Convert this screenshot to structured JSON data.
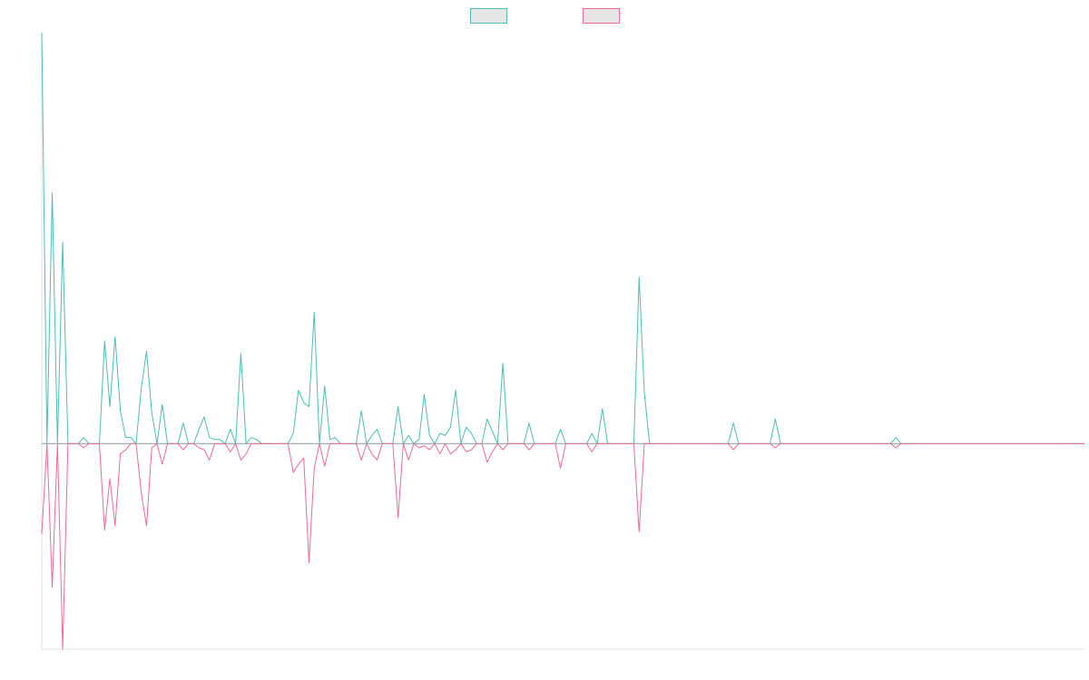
{
  "chart_data": {
    "type": "line",
    "title": "",
    "xlabel": "",
    "ylabel": "",
    "x_count": 200,
    "ylim": [
      -1,
      2
    ],
    "grid": false,
    "legend": "top-center",
    "baseline": 0,
    "colors": {
      "axis": "#e2e2e2",
      "zero_line": "#9aa3ad"
    },
    "series": [
      {
        "color": "#4cbfb6",
        "fill": "#e6e6e6",
        "spikes": [
          [
            0,
            2.0
          ],
          [
            2,
            1.22
          ],
          [
            4,
            0.98
          ],
          [
            8,
            0.03
          ],
          [
            12,
            0.5
          ],
          [
            13,
            0.18
          ],
          [
            14,
            0.52
          ],
          [
            15,
            0.16
          ],
          [
            16,
            0.03
          ],
          [
            17,
            0.03
          ],
          [
            19,
            0.27
          ],
          [
            20,
            0.45
          ],
          [
            21,
            0.15
          ],
          [
            23,
            0.19
          ],
          [
            27,
            0.1
          ],
          [
            30,
            0.07
          ],
          [
            31,
            0.13
          ],
          [
            32,
            0.03
          ],
          [
            33,
            0.02
          ],
          [
            34,
            0.02
          ],
          [
            36,
            0.07
          ],
          [
            38,
            0.44
          ],
          [
            40,
            0.03
          ],
          [
            41,
            0.02
          ],
          [
            48,
            0.05
          ],
          [
            49,
            0.26
          ],
          [
            50,
            0.2
          ],
          [
            51,
            0.18
          ],
          [
            52,
            0.64
          ],
          [
            54,
            0.28
          ],
          [
            55,
            0.02
          ],
          [
            56,
            0.03
          ],
          [
            61,
            0.16
          ],
          [
            63,
            0.04
          ],
          [
            64,
            0.07
          ],
          [
            68,
            0.18
          ],
          [
            70,
            0.04
          ],
          [
            72,
            0.02
          ],
          [
            73,
            0.24
          ],
          [
            74,
            0.04
          ],
          [
            76,
            0.05
          ],
          [
            77,
            0.04
          ],
          [
            78,
            0.08
          ],
          [
            79,
            0.26
          ],
          [
            81,
            0.08
          ],
          [
            82,
            0.05
          ],
          [
            85,
            0.12
          ],
          [
            86,
            0.06
          ],
          [
            88,
            0.39
          ],
          [
            93,
            0.1
          ],
          [
            99,
            0.07
          ],
          [
            105,
            0.05
          ],
          [
            107,
            0.17
          ],
          [
            114,
            0.81
          ],
          [
            115,
            0.25
          ],
          [
            132,
            0.1
          ],
          [
            140,
            0.12
          ],
          [
            163,
            0.03
          ]
        ]
      },
      {
        "color": "#f06b91",
        "fill": "#e6e6e6",
        "spikes": [
          [
            0,
            -0.44
          ],
          [
            2,
            -0.7
          ],
          [
            4,
            -1.0
          ],
          [
            8,
            -0.02
          ],
          [
            12,
            -0.42
          ],
          [
            13,
            -0.17
          ],
          [
            14,
            -0.4
          ],
          [
            15,
            -0.05
          ],
          [
            16,
            -0.03
          ],
          [
            19,
            -0.24
          ],
          [
            20,
            -0.4
          ],
          [
            21,
            -0.02
          ],
          [
            23,
            -0.1
          ],
          [
            27,
            -0.03
          ],
          [
            30,
            -0.02
          ],
          [
            31,
            -0.03
          ],
          [
            32,
            -0.08
          ],
          [
            36,
            -0.04
          ],
          [
            38,
            -0.08
          ],
          [
            39,
            -0.05
          ],
          [
            48,
            -0.14
          ],
          [
            49,
            -0.1
          ],
          [
            50,
            -0.07
          ],
          [
            51,
            -0.58
          ],
          [
            52,
            -0.12
          ],
          [
            54,
            -0.11
          ],
          [
            61,
            -0.08
          ],
          [
            63,
            -0.05
          ],
          [
            64,
            -0.08
          ],
          [
            68,
            -0.36
          ],
          [
            70,
            -0.08
          ],
          [
            72,
            -0.02
          ],
          [
            73,
            -0.01
          ],
          [
            74,
            -0.03
          ],
          [
            76,
            -0.05
          ],
          [
            78,
            -0.05
          ],
          [
            79,
            -0.03
          ],
          [
            81,
            -0.04
          ],
          [
            82,
            -0.03
          ],
          [
            85,
            -0.09
          ],
          [
            86,
            -0.04
          ],
          [
            88,
            -0.03
          ],
          [
            93,
            -0.03
          ],
          [
            99,
            -0.12
          ],
          [
            105,
            -0.04
          ],
          [
            114,
            -0.43
          ],
          [
            132,
            -0.03
          ],
          [
            140,
            -0.02
          ],
          [
            163,
            -0.02
          ]
        ]
      }
    ]
  }
}
